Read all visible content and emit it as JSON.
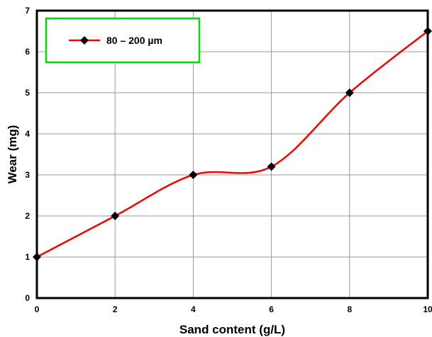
{
  "chart_data": {
    "type": "line",
    "xlabel": "Sand content (g/L)",
    "ylabel": "Wear (mg)",
    "xlim": [
      0,
      10
    ],
    "ylim": [
      0,
      7
    ],
    "x_ticks": [
      0,
      2,
      4,
      6,
      8,
      10
    ],
    "y_ticks": [
      0,
      1,
      2,
      3,
      4,
      5,
      6,
      7
    ],
    "grid": true,
    "legend_position": "top-left",
    "series": [
      {
        "name": "80 – 200  µm",
        "color": "#ff0000",
        "marker": "diamond",
        "marker_color": "#000000",
        "smooth": true,
        "x": [
          0,
          2,
          4,
          6,
          8,
          10
        ],
        "y": [
          1.0,
          2.0,
          3.0,
          3.2,
          5.0,
          6.5
        ]
      }
    ]
  },
  "colors": {
    "line": "#ff0000",
    "marker": "#000000",
    "legend_border": "#00dd00",
    "grid": "#999999"
  }
}
